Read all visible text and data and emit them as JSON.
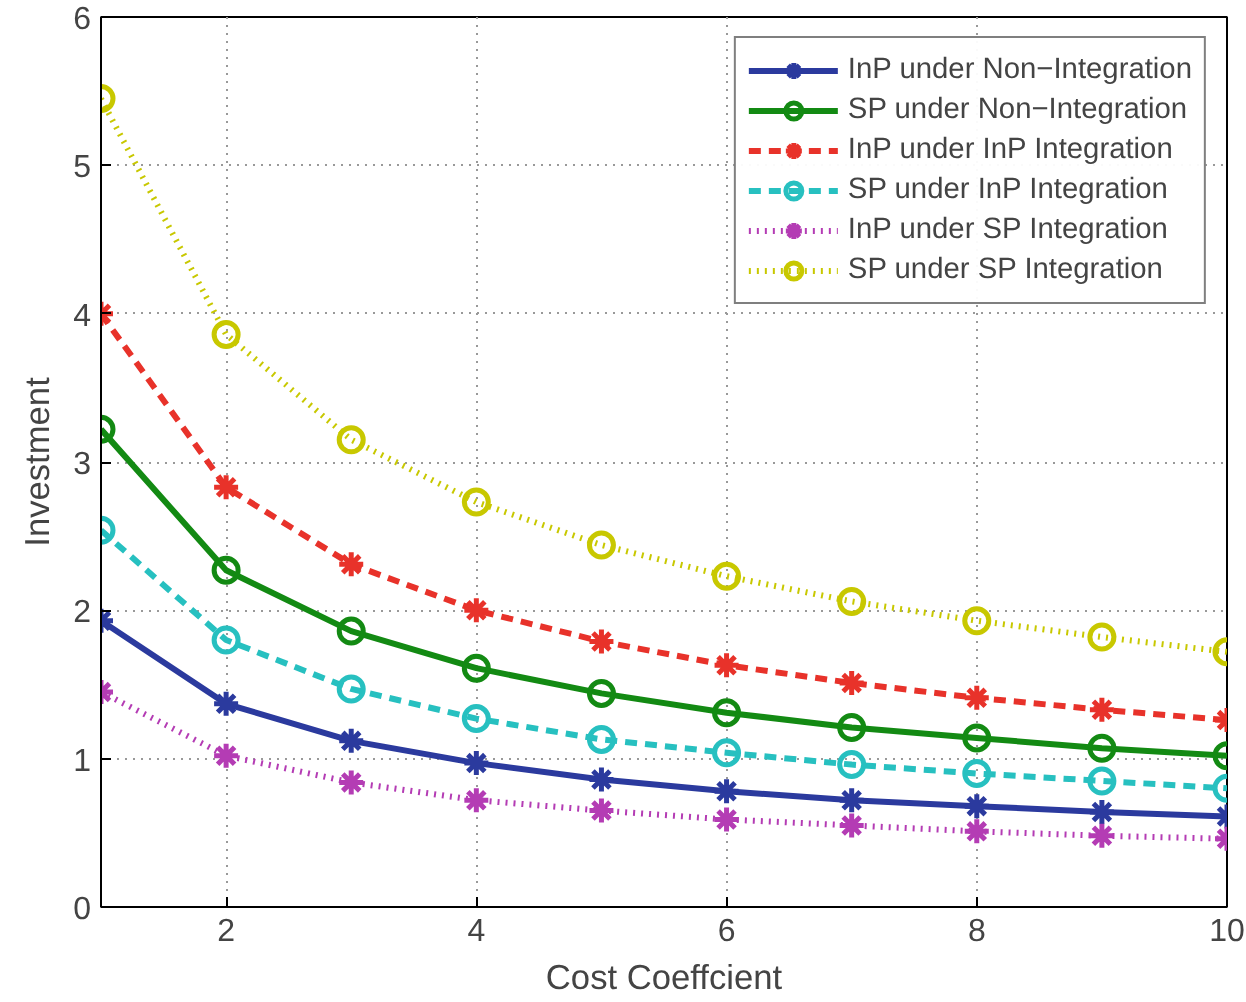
{
  "chart_data": {
    "type": "line",
    "xlabel": "Cost Coeffcient",
    "ylabel": "Investment",
    "x": [
      1,
      2,
      3,
      4,
      5,
      6,
      7,
      8,
      9,
      10
    ],
    "xlim": [
      1,
      10
    ],
    "xticks": [
      2,
      4,
      6,
      8,
      10
    ],
    "ylim": [
      0,
      6
    ],
    "yticks": [
      0,
      1,
      2,
      3,
      4,
      5,
      6
    ],
    "grid": true,
    "legend": "top right",
    "series": [
      {
        "name": "InP under Non−Integration",
        "color": "#2b3a9e",
        "marker": "cross",
        "line_style": "solid",
        "values": [
          1.93,
          1.37,
          1.12,
          0.97,
          0.86,
          0.78,
          0.72,
          0.68,
          0.64,
          0.61
        ]
      },
      {
        "name": "SP under Non−Integration",
        "color": "#138a13",
        "marker": "circle",
        "line_style": "solid",
        "values": [
          3.22,
          2.27,
          1.86,
          1.61,
          1.44,
          1.31,
          1.21,
          1.14,
          1.07,
          1.02
        ]
      },
      {
        "name": "InP under InP Integration",
        "color": "#e8322a",
        "marker": "cross",
        "line_style": "dashed",
        "values": [
          4.0,
          2.83,
          2.31,
          2.0,
          1.79,
          1.63,
          1.51,
          1.41,
          1.33,
          1.26
        ]
      },
      {
        "name": "SP under InP Integration",
        "color": "#27c0c0",
        "marker": "circle",
        "line_style": "dashed",
        "values": [
          2.54,
          1.8,
          1.47,
          1.27,
          1.13,
          1.04,
          0.96,
          0.9,
          0.85,
          0.8
        ]
      },
      {
        "name": "InP under SP Integration",
        "color": "#b43cb4",
        "marker": "cross",
        "line_style": "dotted",
        "values": [
          1.45,
          1.02,
          0.84,
          0.72,
          0.65,
          0.59,
          0.55,
          0.51,
          0.48,
          0.46
        ]
      },
      {
        "name": "SP under SP Integration",
        "color": "#c8c800",
        "marker": "circle",
        "line_style": "dotted",
        "values": [
          5.45,
          3.86,
          3.15,
          2.73,
          2.44,
          2.23,
          2.06,
          1.93,
          1.82,
          1.72
        ]
      }
    ]
  }
}
